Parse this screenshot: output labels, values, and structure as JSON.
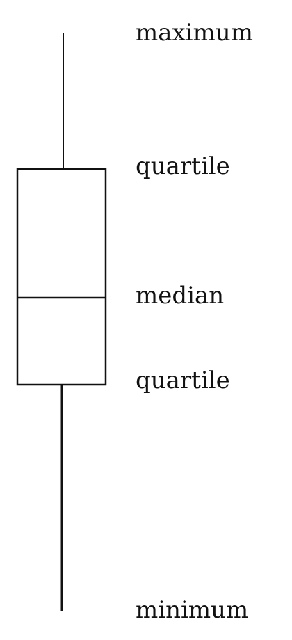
{
  "labels": {
    "maximum": "maximum",
    "upper_quartile": "quartile",
    "median": "median",
    "lower_quartile": "quartile",
    "minimum": "minimum"
  },
  "colors": {
    "ink": "#111111",
    "background": "#ffffff"
  }
}
